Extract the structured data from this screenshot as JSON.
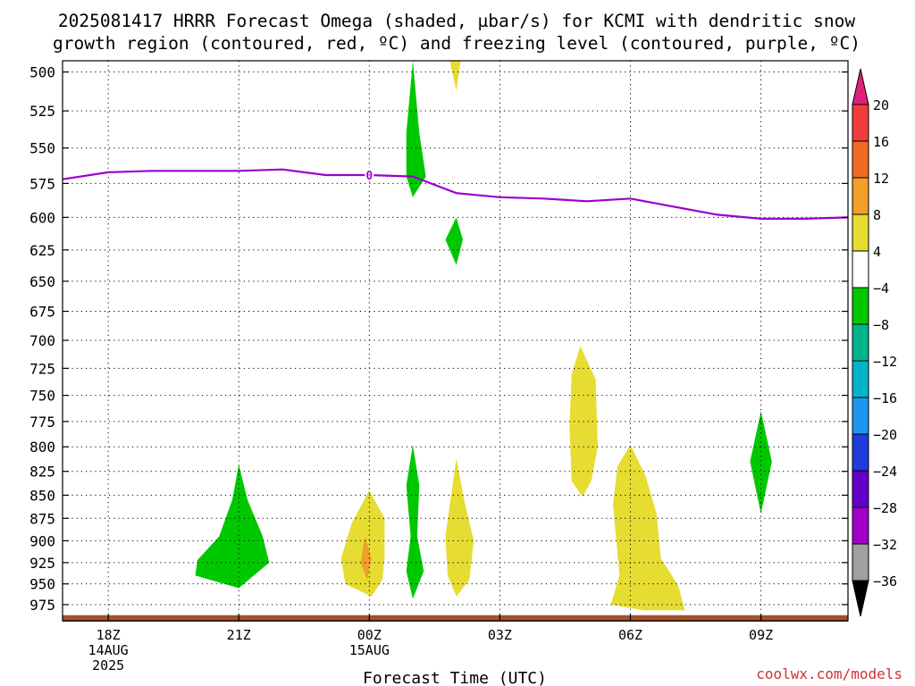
{
  "chart_data": {
    "type": "heatmap",
    "title_lines": [
      "2025081417 HRRR Forecast Omega (shaded, µbar/s) for KCMI with dendritic snow",
      "growth region (contoured, red, ºC) and freezing level (contoured, purple, ºC)"
    ],
    "xlabel": "Forecast Time (UTC)",
    "x_ticks": [
      {
        "hour": 0,
        "lines": [
          "18Z",
          "14AUG",
          "2025"
        ]
      },
      {
        "hour": 3,
        "lines": [
          "21Z"
        ]
      },
      {
        "hour": 6,
        "lines": [
          "00Z",
          "15AUG"
        ]
      },
      {
        "hour": 9,
        "lines": [
          "03Z"
        ]
      },
      {
        "hour": 12,
        "lines": [
          "06Z"
        ]
      },
      {
        "hour": 15,
        "lines": [
          "09Z"
        ]
      }
    ],
    "xlim": [
      -1.05,
      17.0
    ],
    "ylabel": "",
    "y_ticks": [
      500,
      525,
      550,
      575,
      600,
      625,
      650,
      675,
      700,
      725,
      750,
      775,
      800,
      825,
      850,
      875,
      900,
      925,
      950,
      975
    ],
    "ylim_hPa": [
      493,
      995
    ],
    "y_scale": "log-pressure",
    "grid": true,
    "colorbar": {
      "labels": [
        "20",
        "16",
        "12",
        "8",
        "4",
        "−4",
        "−8",
        "−12",
        "−16",
        "−20",
        "−24",
        "−28",
        "−32",
        "−36"
      ],
      "bins": [
        {
          "lo": 20,
          "hi": null,
          "color": "#e0207e"
        },
        {
          "lo": 16,
          "hi": 20,
          "color": "#f03c3c"
        },
        {
          "lo": 12,
          "hi": 16,
          "color": "#f06a24"
        },
        {
          "lo": 8,
          "hi": 12,
          "color": "#f0a02a"
        },
        {
          "lo": 4,
          "hi": 8,
          "color": "#e6dc32"
        },
        {
          "lo": -4,
          "hi": 4,
          "color": "#ffffff"
        },
        {
          "lo": -8,
          "hi": -4,
          "color": "#00c800"
        },
        {
          "lo": -12,
          "hi": -8,
          "color": "#00b48c"
        },
        {
          "lo": -16,
          "hi": -12,
          "color": "#00b4c8"
        },
        {
          "lo": -20,
          "hi": -16,
          "color": "#1e96f0"
        },
        {
          "lo": -24,
          "hi": -20,
          "color": "#1e3cdc"
        },
        {
          "lo": -28,
          "hi": -24,
          "color": "#6400c8"
        },
        {
          "lo": -32,
          "hi": -28,
          "color": "#a000c8"
        },
        {
          "lo": -36,
          "hi": -32,
          "color": "#a0a0a0"
        },
        {
          "lo": null,
          "hi": -36,
          "color": "#000000"
        }
      ]
    },
    "freezing_level": {
      "color": "#9900cc",
      "contour_label": "0",
      "label_at": {
        "hour": 6.0,
        "hPa": 569
      },
      "points": [
        {
          "hour": -1.05,
          "hPa": 572
        },
        {
          "hour": 0.0,
          "hPa": 567
        },
        {
          "hour": 1.0,
          "hPa": 566
        },
        {
          "hour": 2.0,
          "hPa": 566
        },
        {
          "hour": 3.0,
          "hPa": 566
        },
        {
          "hour": 4.0,
          "hPa": 565
        },
        {
          "hour": 5.0,
          "hPa": 569
        },
        {
          "hour": 6.0,
          "hPa": 569
        },
        {
          "hour": 7.0,
          "hPa": 570
        },
        {
          "hour": 8.0,
          "hPa": 582
        },
        {
          "hour": 9.0,
          "hPa": 585
        },
        {
          "hour": 10.0,
          "hPa": 586
        },
        {
          "hour": 11.0,
          "hPa": 588
        },
        {
          "hour": 12.0,
          "hPa": 586
        },
        {
          "hour": 13.0,
          "hPa": 592
        },
        {
          "hour": 14.0,
          "hPa": 598
        },
        {
          "hour": 15.0,
          "hPa": 601
        },
        {
          "hour": 16.0,
          "hPa": 601
        },
        {
          "hour": 17.0,
          "hPa": 600
        }
      ]
    },
    "omega_regions": [
      {
        "name": "green-2030z-lowlevel",
        "sign": "ascent",
        "level": "-4 to -8",
        "color": "#00c800",
        "outline": [
          [
            3.0,
            818
          ],
          [
            2.85,
            855
          ],
          [
            2.55,
            895
          ],
          [
            2.05,
            922
          ],
          [
            2.0,
            940
          ],
          [
            3.0,
            955
          ],
          [
            3.7,
            925
          ],
          [
            3.55,
            895
          ],
          [
            3.2,
            855
          ]
        ]
      },
      {
        "name": "green-0100z-upper",
        "sign": "ascent",
        "level": "-4 to -8",
        "color": "#00c800",
        "outline": [
          [
            7.0,
            493
          ],
          [
            7.15,
            540
          ],
          [
            7.3,
            570
          ],
          [
            7.0,
            585
          ],
          [
            6.85,
            570
          ],
          [
            6.85,
            540
          ]
        ]
      },
      {
        "name": "green-0200z-615",
        "sign": "ascent",
        "level": "-4 to -8",
        "color": "#00c800",
        "outline": [
          [
            8.0,
            600
          ],
          [
            8.15,
            617
          ],
          [
            8.0,
            637
          ],
          [
            7.75,
            617
          ]
        ]
      },
      {
        "name": "green-0100z-lowlevel",
        "sign": "ascent",
        "level": "-4 to -8",
        "color": "#00c800",
        "outline": [
          [
            7.0,
            798
          ],
          [
            7.15,
            840
          ],
          [
            7.1,
            895
          ],
          [
            7.25,
            935
          ],
          [
            7.0,
            968
          ],
          [
            6.85,
            935
          ],
          [
            6.95,
            895
          ],
          [
            6.85,
            840
          ]
        ]
      },
      {
        "name": "green-1000z",
        "sign": "ascent",
        "level": "-4 to -8",
        "color": "#00c800",
        "outline": [
          [
            15.0,
            765
          ],
          [
            15.25,
            815
          ],
          [
            15.0,
            870
          ],
          [
            14.75,
            815
          ]
        ]
      },
      {
        "name": "yellow-0200z-upper",
        "sign": "descent",
        "level": "4 to 8",
        "color": "#e6dc32",
        "outline": [
          [
            7.85,
            493
          ],
          [
            8.1,
            493
          ],
          [
            8.0,
            512
          ]
        ]
      },
      {
        "name": "yellow-0000z",
        "sign": "descent",
        "level": "4 to 8",
        "color": "#e6dc32",
        "outline": [
          [
            6.0,
            845
          ],
          [
            6.35,
            875
          ],
          [
            6.35,
            920
          ],
          [
            6.3,
            945
          ],
          [
            6.05,
            965
          ],
          [
            5.45,
            950
          ],
          [
            5.35,
            920
          ],
          [
            5.6,
            880
          ]
        ]
      },
      {
        "name": "orange-0000z",
        "sign": "descent",
        "level": "8 to 12",
        "color": "#f0a02a",
        "outline": [
          [
            5.9,
            895
          ],
          [
            6.05,
            920
          ],
          [
            5.95,
            945
          ],
          [
            5.8,
            925
          ]
        ]
      },
      {
        "name": "yellow-0200z-lowlevel",
        "sign": "descent",
        "level": "4 to 8",
        "color": "#e6dc32",
        "outline": [
          [
            8.0,
            812
          ],
          [
            8.2,
            860
          ],
          [
            8.4,
            900
          ],
          [
            8.3,
            945
          ],
          [
            8.0,
            965
          ],
          [
            7.8,
            940
          ],
          [
            7.75,
            895
          ],
          [
            7.85,
            860
          ]
        ]
      },
      {
        "name": "yellow-0400z",
        "sign": "descent",
        "level": "4 to 8",
        "color": "#e6dc32",
        "outline": [
          [
            10.85,
            705
          ],
          [
            11.2,
            735
          ],
          [
            11.25,
            800
          ],
          [
            11.1,
            835
          ],
          [
            10.9,
            852
          ],
          [
            10.65,
            835
          ],
          [
            10.6,
            780
          ],
          [
            10.65,
            730
          ]
        ]
      },
      {
        "name": "yellow-0600z",
        "sign": "descent",
        "level": "4 to 8",
        "color": "#e6dc32",
        "outline": [
          [
            12.0,
            798
          ],
          [
            12.35,
            830
          ],
          [
            12.6,
            870
          ],
          [
            12.7,
            920
          ],
          [
            13.1,
            952
          ],
          [
            13.25,
            982
          ],
          [
            12.3,
            982
          ],
          [
            11.55,
            975
          ],
          [
            11.75,
            940
          ],
          [
            11.6,
            860
          ],
          [
            11.7,
            820
          ]
        ]
      }
    ],
    "surface_terrain": {
      "color": "#a0522d",
      "hPa_top": 988,
      "hPa_bottom": 994
    }
  },
  "credit": "coolwx.com/models"
}
